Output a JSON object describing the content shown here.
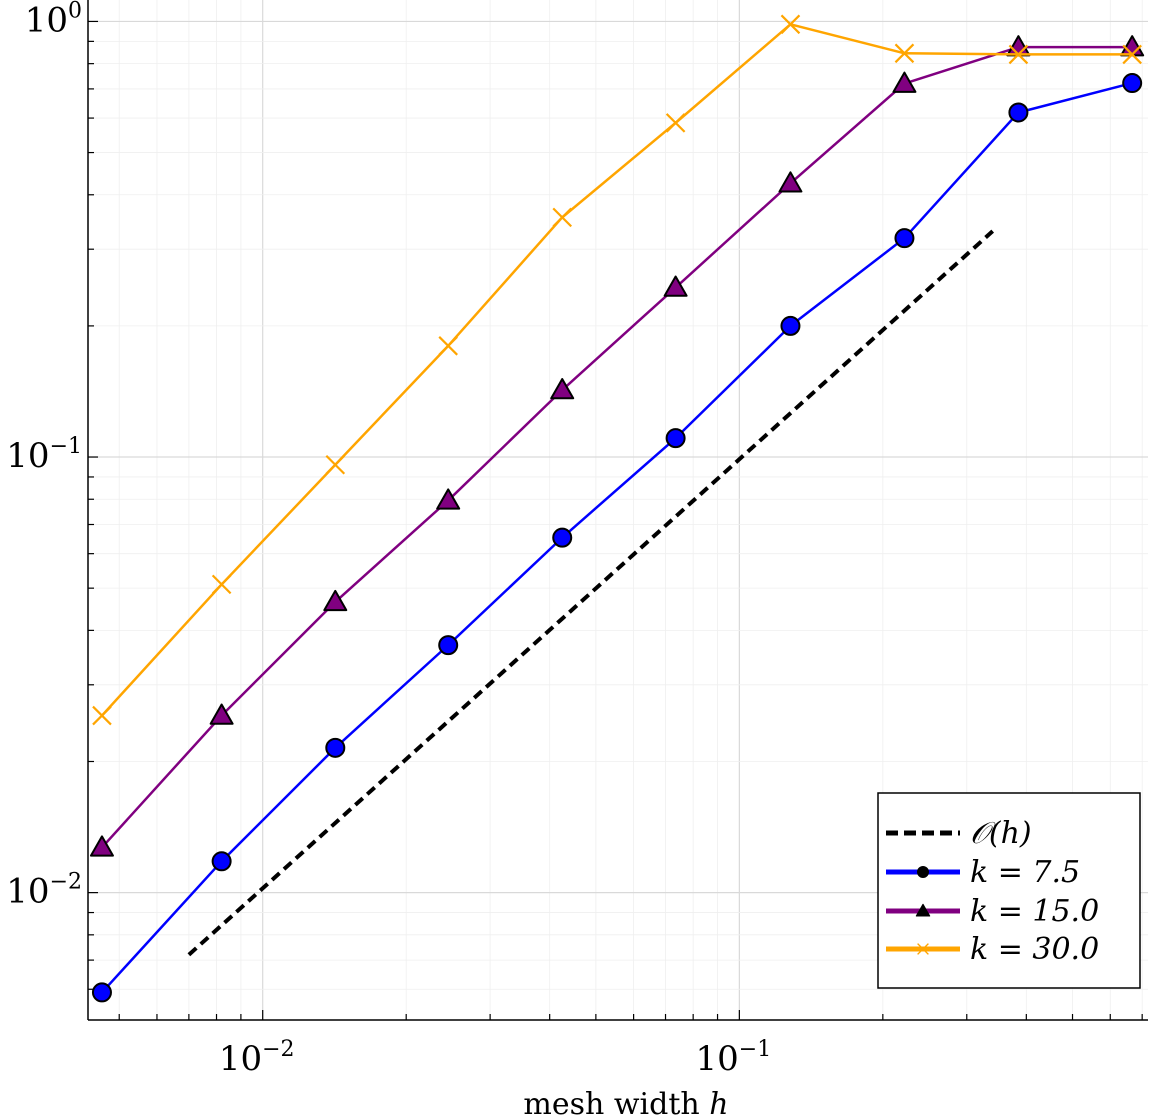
{
  "chart_data": {
    "type": "line",
    "title": "",
    "xlabel": "mesh width h",
    "xlabel_text": "mesh width",
    "xlabel_var": "h",
    "ylabel": "",
    "xscale": "log",
    "yscale": "log",
    "xlim": [
      0.0043,
      0.72
    ],
    "ylim": [
      0.0051,
      1.12
    ],
    "grid": true,
    "legend_position": "bottom-right",
    "xticks": [
      {
        "value": 0.01,
        "base": "10",
        "exp": "−2"
      },
      {
        "value": 0.1,
        "base": "10",
        "exp": "−1"
      }
    ],
    "yticks": [
      {
        "value": 0.01,
        "base": "10",
        "exp": "−2"
      },
      {
        "value": 0.1,
        "base": "10",
        "exp": "−1"
      },
      {
        "value": 1,
        "base": "10",
        "exp": "0"
      }
    ],
    "reference": {
      "name": "O(h)",
      "label": "𝒪(h)",
      "x": [
        0.007,
        0.34
      ],
      "y": [
        0.0072,
        0.33
      ],
      "color": "#000000",
      "style": "dashed"
    },
    "series": [
      {
        "name": "k = 7.5",
        "marker": "circle",
        "color": "#0000ff",
        "x": [
          0.0046,
          0.0082,
          0.0142,
          0.0245,
          0.0425,
          0.0735,
          0.128,
          0.222,
          0.385,
          0.667
        ],
        "y": [
          0.0059,
          0.0118,
          0.0215,
          0.037,
          0.0653,
          0.1105,
          0.2,
          0.318,
          0.618,
          0.722
        ]
      },
      {
        "name": "k = 15.0",
        "marker": "triangle",
        "color": "#800080",
        "x": [
          0.0046,
          0.0082,
          0.0142,
          0.0245,
          0.0425,
          0.0735,
          0.128,
          0.222,
          0.385,
          0.667
        ],
        "y": [
          0.0127,
          0.0255,
          0.0465,
          0.0795,
          0.1425,
          0.245,
          0.425,
          0.72,
          0.873,
          0.873
        ]
      },
      {
        "name": "k = 30.0",
        "marker": "x",
        "color": "#ffa500",
        "x": [
          0.0046,
          0.0082,
          0.0142,
          0.0245,
          0.0425,
          0.0735,
          0.128,
          0.222,
          0.385,
          0.667
        ],
        "y": [
          0.0255,
          0.051,
          0.096,
          0.18,
          0.355,
          0.585,
          0.985,
          0.845,
          0.84,
          0.84
        ]
      }
    ],
    "legend": [
      {
        "label": "𝒪(h)",
        "color": "#000000",
        "style": "dashed",
        "marker": "none"
      },
      {
        "label": "k = 7.5",
        "color": "#0000ff",
        "style": "solid",
        "marker": "circle"
      },
      {
        "label": "k = 15.0",
        "color": "#800080",
        "style": "solid",
        "marker": "triangle"
      },
      {
        "label": "k = 30.0",
        "color": "#ffa500",
        "style": "solid",
        "marker": "x"
      }
    ]
  }
}
